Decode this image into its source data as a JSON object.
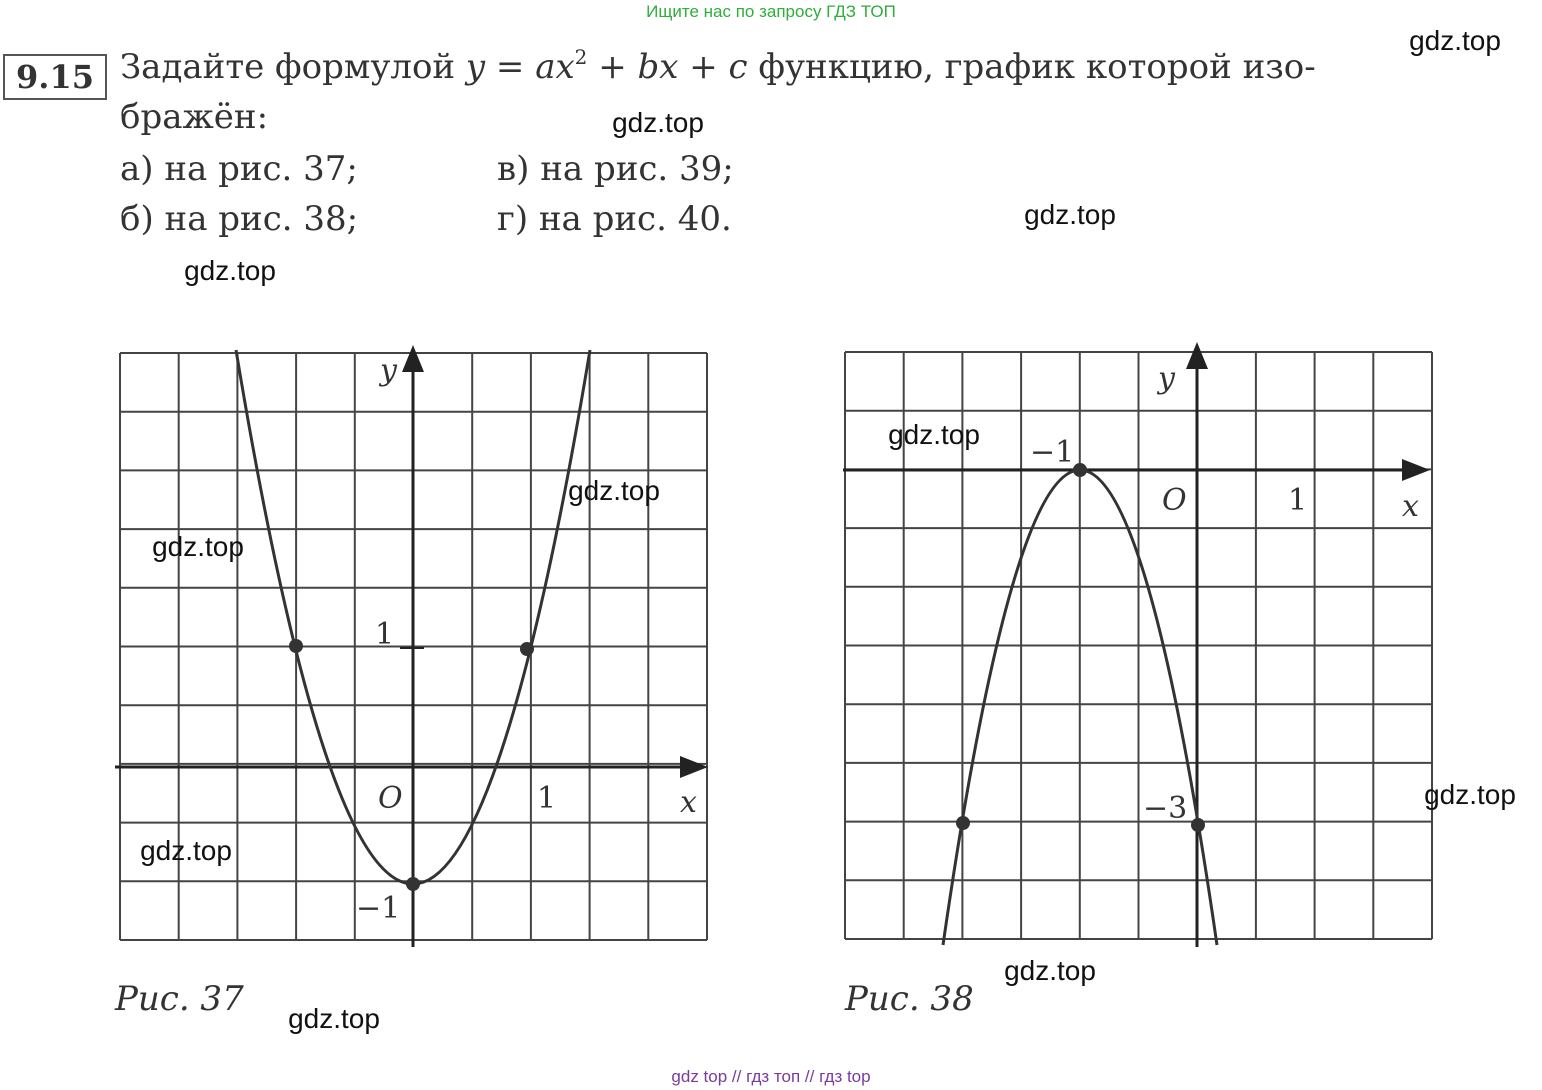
{
  "header": {
    "banner": "Ищите нас по запросу ГДЗ ТОП"
  },
  "problem": {
    "number": "9.15",
    "line1_start": "Задайте формулой ",
    "formula_main": "y = ax",
    "formula_exp": "2",
    "formula_rest": " + bx + c",
    "line1_end": " функцию, график которой изо-",
    "line2": "бражён:",
    "items": [
      "а) на рис. 37;",
      "в) на рис. 39;",
      "б) на рис. 38;",
      "г) на рис. 40."
    ]
  },
  "figures": [
    {
      "caption": "Рис. 37",
      "labels": {
        "y_axis": "y",
        "x_axis": "x",
        "origin": "O",
        "x_one": "1",
        "y_one": "1",
        "y_minus_one": "−1"
      }
    },
    {
      "caption": "Рис. 38",
      "labels": {
        "y_axis": "y",
        "x_axis": "x",
        "origin": "O",
        "x_one": "1",
        "x_minus_one": "−1",
        "y_minus_three": "−3"
      }
    }
  ],
  "watermarks": [
    "gdz.top",
    "gdz.top",
    "gdz.top",
    "gdz.top",
    "gdz.top",
    "gdz.top",
    "gdz.top",
    "gdz.top",
    "gdz.top",
    "gdz.top",
    "gdz.top"
  ],
  "footer": "gdz top  //  гдз топ  //  гдз top"
}
